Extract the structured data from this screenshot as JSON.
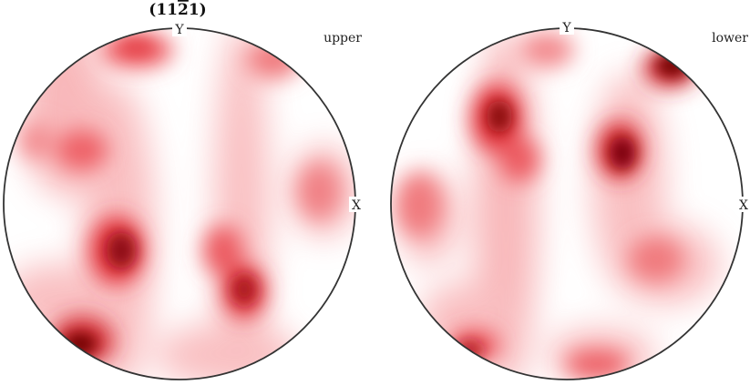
{
  "figure": {
    "title": "(112̄1)",
    "title_parts": {
      "open": "(",
      "digits_a": "11",
      "digit_bar": "2",
      "digits_b": "1",
      "close": ")"
    },
    "colormap": {
      "low": "#ffffff",
      "mid": "#f26f74",
      "high": "#6e0005"
    },
    "plots": [
      {
        "hemisphere": "upper",
        "axis_y": "Y",
        "axis_x": "X"
      },
      {
        "hemisphere": "lower",
        "axis_y": "Y",
        "axis_x": "X"
      }
    ]
  }
}
